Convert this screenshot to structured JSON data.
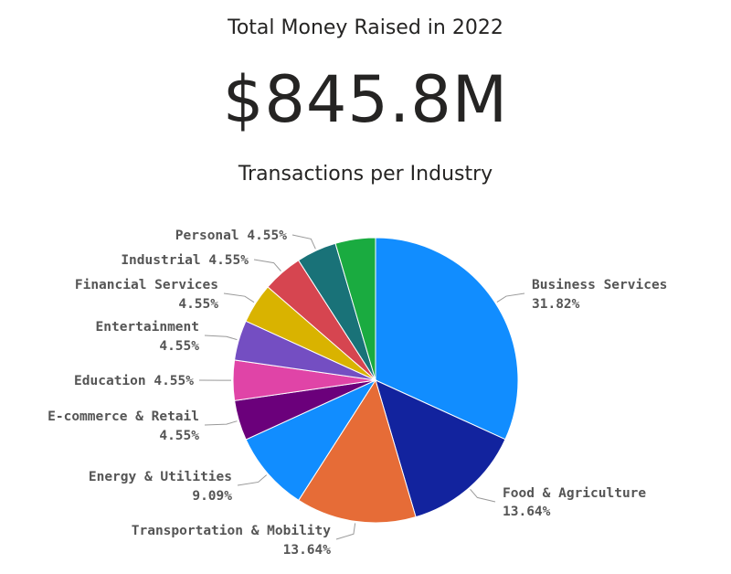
{
  "card": {
    "title": "Total Money Raised in 2022",
    "value": "$845.8M"
  },
  "chart_data": {
    "type": "pie",
    "title": "Transactions per Industry",
    "slices": [
      {
        "name": "Business Services",
        "value": 31.82,
        "label": "31.82%",
        "color": "#118DFF"
      },
      {
        "name": "Food & Agriculture",
        "value": 13.64,
        "label": "13.64%",
        "color": "#12239E"
      },
      {
        "name": "Transportation & Mobility",
        "value": 13.64,
        "label": "13.64%",
        "color": "#E66C37"
      },
      {
        "name": "Energy & Utilities",
        "value": 9.09,
        "label": "9.09%",
        "color": "#118DFF"
      },
      {
        "name": "E-commerce & Retail",
        "value": 4.55,
        "label": "4.55%",
        "color": "#6B007B"
      },
      {
        "name": "Education",
        "value": 4.55,
        "label": "4.55%",
        "color": "#E044A7"
      },
      {
        "name": "Entertainment",
        "value": 4.55,
        "label": "4.55%",
        "color": "#744EC2"
      },
      {
        "name": "Financial Services",
        "value": 4.55,
        "label": "4.55%",
        "color": "#D9B300"
      },
      {
        "name": "Industrial",
        "value": 4.55,
        "label": "4.55%",
        "color": "#D64550"
      },
      {
        "name": "Personal",
        "value": 4.55,
        "label": "4.55%",
        "color": "#197278"
      },
      {
        "name": "",
        "value": 4.55,
        "label": "",
        "color": "#1AAB40"
      }
    ],
    "legend": "none"
  }
}
